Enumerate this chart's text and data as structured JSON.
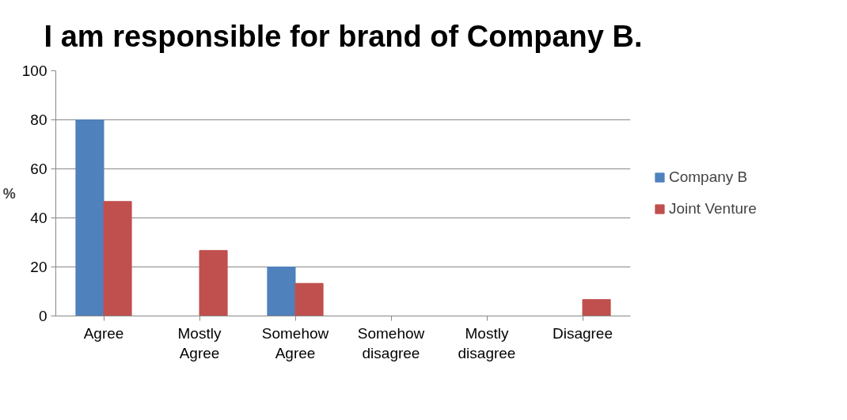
{
  "chart_data": {
    "type": "bar",
    "title": "I am responsible for brand of Company B.",
    "ylabel": "%",
    "categories": [
      "Agree",
      "Mostly Agree",
      "Somehow Agree",
      "Somehow disagree",
      "Mostly disagree",
      "Disagree"
    ],
    "series": [
      {
        "name": "Company B",
        "color": "#4f81bd",
        "values": [
          80,
          0,
          20,
          0,
          0,
          0
        ]
      },
      {
        "name": "Joint Venture",
        "color": "#c0504d",
        "values": [
          46.7,
          26.7,
          13.3,
          0,
          0,
          6.7
        ]
      }
    ],
    "ylim": [
      0,
      100
    ],
    "yticks": [
      0,
      20,
      40,
      60,
      80,
      100
    ],
    "grid": "y",
    "legend": "right"
  }
}
